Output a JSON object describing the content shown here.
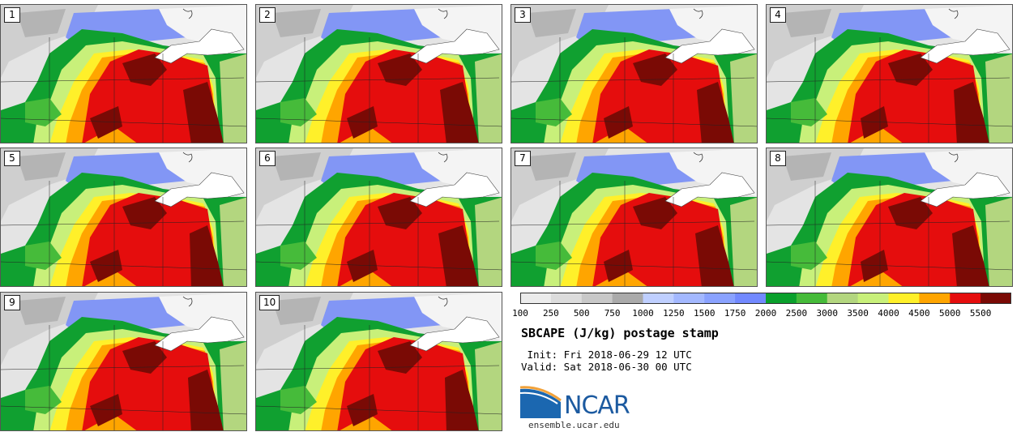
{
  "panels": [
    "1",
    "2",
    "3",
    "4",
    "5",
    "6",
    "7",
    "8",
    "9",
    "10"
  ],
  "colorbar": {
    "ticks": [
      "100",
      "250",
      "500",
      "750",
      "1000",
      "1250",
      "1500",
      "1750",
      "2000",
      "2500",
      "3000",
      "3500",
      "4000",
      "4500",
      "5000",
      "5500"
    ],
    "colors": [
      "#ececec",
      "#dcdcdc",
      "#c8c8c8",
      "#aaaaaa",
      "#bfcfff",
      "#a3b8ff",
      "#8aa2ff",
      "#7289ff",
      "#0aa02c",
      "#46bb3a",
      "#b3d67f",
      "#c8f07a",
      "#fff02a",
      "#ffa500",
      "#e50d0d",
      "#7a0a05"
    ]
  },
  "title": "SBCAPE (J/kg) postage stamp",
  "init_line": " Init: Fri 2018-06-29 12 UTC",
  "valid_line": "Valid: Sat 2018-06-30 00 UTC",
  "logo": {
    "name": "NCAR",
    "url": "ensemble.ucar.edu"
  }
}
